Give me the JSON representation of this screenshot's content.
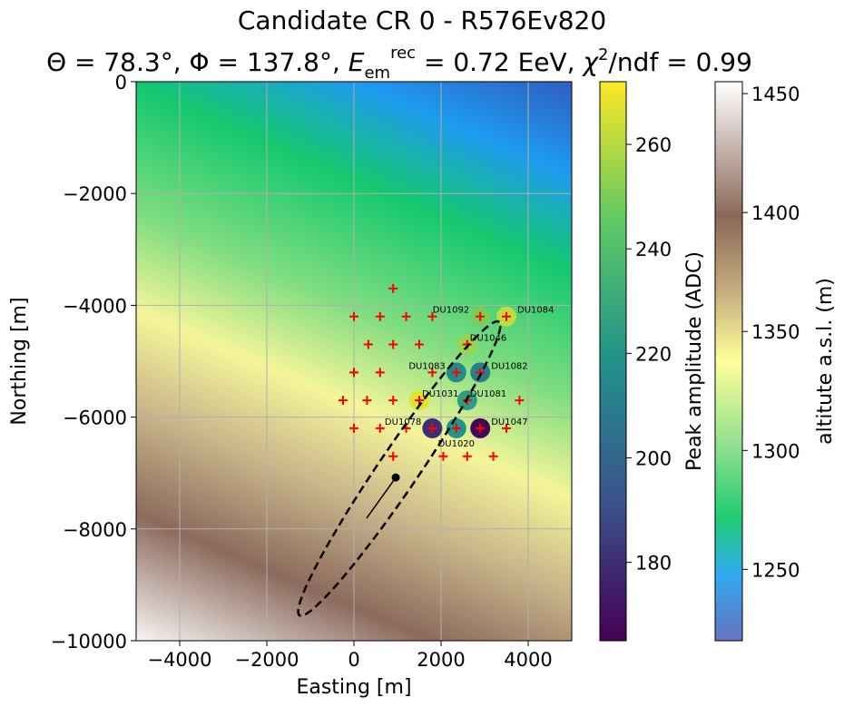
{
  "chart_data": {
    "type": "scatter",
    "title": "Candidate CR 0 - R576Ev820",
    "subtitle": "Θ = 78.3°, Φ = 137.8°, E_em^rec = 0.72 EeV, χ²/ndf = 0.99",
    "subtitle_parts": {
      "theta": "Θ = 78.3°, ",
      "phi": "Φ = 137.8°, ",
      "e": "E",
      "e_sup": "rec",
      "e_sub": "em",
      "e_val": " = 0.72 EeV, ",
      "chi": "χ",
      "chi_sup": "2",
      "chi_val": "/ndf = 0.99"
    },
    "xlabel": "Easting [m]",
    "ylabel": "Northing [m]",
    "xlim": [
      -5000,
      5000
    ],
    "ylim": [
      -10000,
      0
    ],
    "xticks": [
      -4000,
      -2000,
      0,
      2000,
      4000
    ],
    "xtick_labels": [
      "−4000",
      "−2000",
      "0",
      "2000",
      "4000"
    ],
    "yticks": [
      0,
      -2000,
      -4000,
      -6000,
      -8000,
      -10000
    ],
    "ytick_labels": [
      "0",
      "−2000",
      "−4000",
      "−6000",
      "−8000",
      "−10000"
    ],
    "grid": true,
    "stations": [
      [
        900,
        -3700
      ],
      [
        0,
        -4200
      ],
      [
        600,
        -4200
      ],
      [
        1200,
        -4200
      ],
      [
        1800,
        -4200
      ],
      [
        2900,
        -4200
      ],
      [
        3500,
        -4200
      ],
      [
        330,
        -4700
      ],
      [
        900,
        -4700
      ],
      [
        1500,
        -4700
      ],
      [
        2600,
        -4700
      ],
      [
        0,
        -5200
      ],
      [
        600,
        -5200
      ],
      [
        1800,
        -5200
      ],
      [
        2350,
        -5200
      ],
      [
        2900,
        -5200
      ],
      [
        -250,
        -5700
      ],
      [
        300,
        -5700
      ],
      [
        900,
        -5700
      ],
      [
        1500,
        -5700
      ],
      [
        2600,
        -5700
      ],
      [
        3800,
        -5700
      ],
      [
        0,
        -6200
      ],
      [
        600,
        -6200
      ],
      [
        1200,
        -6200
      ],
      [
        1800,
        -6200
      ],
      [
        2350,
        -6200
      ],
      [
        2900,
        -6200
      ],
      [
        3500,
        -6200
      ],
      [
        900,
        -6700
      ],
      [
        2050,
        -6700
      ],
      [
        2600,
        -6700
      ],
      [
        3200,
        -6700
      ]
    ],
    "triggered": [
      {
        "name": "DU1092",
        "x": 2900,
        "y": -4200,
        "amp": 250
      },
      {
        "name": "DU1084",
        "x": 3500,
        "y": -4200,
        "amp": 262
      },
      {
        "name": "DU1046",
        "x": 2600,
        "y": -4700,
        "amp": 255
      },
      {
        "name": "DU1083",
        "x": 2350,
        "y": -5200,
        "amp": 216
      },
      {
        "name": "DU1082",
        "x": 2900,
        "y": -5200,
        "amp": 211
      },
      {
        "name": "DU1031",
        "x": 1500,
        "y": -5700,
        "amp": 268
      },
      {
        "name": "DU1081",
        "x": 2600,
        "y": -5700,
        "amp": 224
      },
      {
        "name": "DU1078",
        "x": 1800,
        "y": -6200,
        "amp": 180
      },
      {
        "name": "DU1020",
        "x": 2350,
        "y": -6200,
        "amp": 220
      },
      {
        "name": "DU1047",
        "x": 2900,
        "y": -6200,
        "amp": 167
      }
    ],
    "core": {
      "x": 960,
      "y": -7080
    },
    "arrow_end": {
      "x": 290,
      "y": -7810
    },
    "ellipse": {
      "cx": 1040,
      "cy": -6920,
      "major_dx": 2300,
      "major_dy": 2620,
      "minor": 420
    },
    "colorbar_amp": {
      "label": "Peak amplitude (ADC)",
      "range": [
        165,
        272
      ],
      "ticks": [
        180,
        200,
        220,
        240,
        260
      ]
    },
    "colorbar_alt": {
      "label": "altitute a.s.l. (m)",
      "range": [
        1220,
        1455
      ],
      "ticks": [
        1250,
        1300,
        1350,
        1400,
        1450
      ]
    }
  }
}
